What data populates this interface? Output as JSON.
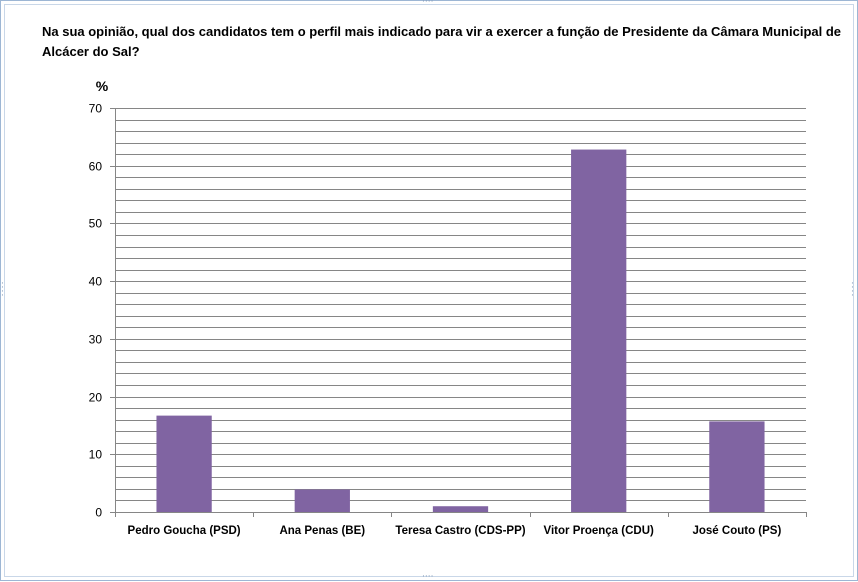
{
  "chart_data": {
    "type": "bar",
    "title": "Na sua opinião, qual dos candidatos tem o perfil mais indicado para vir a exercer a função de Presidente da Câmara Municipal de Alcácer do Sal?",
    "ylabel": "%",
    "xlabel": "",
    "categories": [
      "Pedro Goucha (PSD)",
      "Ana Penas (BE)",
      "Teresa Castro (CDS-PP)",
      "Vitor Proença (CDU)",
      "José Couto (PS)"
    ],
    "values": [
      16.7,
      3.9,
      1.0,
      62.8,
      15.7
    ],
    "ylim": [
      0,
      70
    ],
    "yticks": [
      0,
      10,
      20,
      30,
      40,
      50,
      60,
      70
    ],
    "minor_grid_step": 2,
    "grid": true,
    "legend": "none",
    "bar_color": "#8064a2",
    "grid_color": "#868686"
  }
}
